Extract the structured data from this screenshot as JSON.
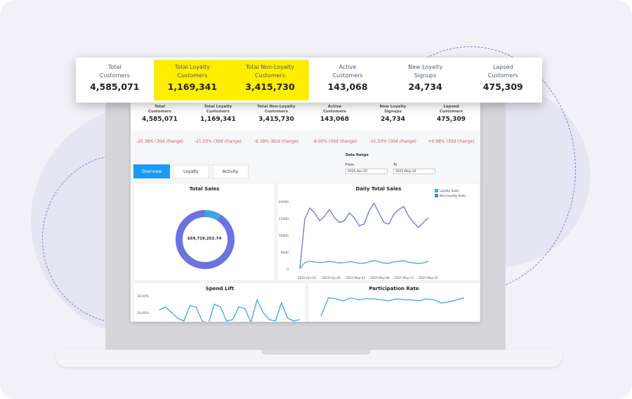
{
  "kpis": [
    {
      "label_line1": "Total",
      "label_line2": "Customers",
      "value": "4,585,071",
      "highlight": false
    },
    {
      "label_line1": "Total Loyalty",
      "label_line2": "Customers",
      "value": "1,169,341",
      "highlight": true
    },
    {
      "label_line1": "Total Non-Loyalty",
      "label_line2": "Customers",
      "value": "3,415,730",
      "highlight": true
    },
    {
      "label_line1": "Active",
      "label_line2": "Customers",
      "value": "143,068",
      "highlight": false
    },
    {
      "label_line1": "New Loyalty",
      "label_line2": "Signups",
      "value": "24,734",
      "highlight": false
    },
    {
      "label_line1": "Lapsed",
      "label_line2": "Customers",
      "value": "475,309",
      "highlight": false
    }
  ],
  "changes": [
    "-20.38% (30d change)",
    "-21.50% (30d change)",
    "-6.38% (82d change)",
    "-9.00% (30d change)",
    "-21.50% (30d change)",
    "+0.98% (30d change)"
  ],
  "date_range": {
    "title": "Date Range",
    "from_label": "From",
    "from_value": "2025-Apr-20",
    "to_label": "To",
    "to_value": "2025-May-19"
  },
  "tabs": [
    "Overview",
    "Loyalty",
    "Activity"
  ],
  "panels": {
    "total_sales": {
      "title": "Total Sales",
      "center_value": "$59,719,252.74"
    },
    "daily": {
      "title": "Daily Total Sales",
      "x_ticks": [
        "2025-Apr-24",
        "2025-Apr-28",
        "2025-May-03",
        "2025-May-08",
        "2025-May-13",
        "2025-May-16"
      ],
      "y_ticks": [
        "20000",
        "15000",
        "10000",
        "5000",
        "0"
      ]
    },
    "spend_lift": {
      "title": "Spend Lift",
      "y_ticks": [
        "30.00%",
        "20.00%"
      ]
    },
    "participation": {
      "title": "Participation Rate"
    }
  },
  "chart_data": [
    {
      "type": "pie",
      "title": "Total Sales",
      "labels": [
        "Loyalty Sales",
        "Non-Loyalty Sales"
      ],
      "values": [
        0.09,
        0.91
      ]
    },
    {
      "type": "line",
      "title": "Daily Total Sales",
      "x": [
        0,
        1,
        2,
        3,
        4,
        5,
        6,
        7,
        8,
        9,
        10,
        11,
        12,
        13,
        14,
        15,
        16,
        17,
        18,
        19,
        20,
        21,
        22,
        23,
        24,
        25,
        26
      ],
      "ylim": [
        0,
        21000
      ],
      "series": [
        {
          "name": "Non-Loyalty Sales",
          "values": [
            100,
            15500,
            19000,
            17500,
            15000,
            16500,
            18500,
            16000,
            14500,
            15000,
            17500,
            16000,
            13500,
            14000,
            18000,
            20500,
            17500,
            14500,
            14000,
            17000,
            18500,
            19500,
            16500,
            14500,
            13000,
            14500,
            16000
          ]
        },
        {
          "name": "Loyalty Sales",
          "values": [
            100,
            2000,
            2400,
            2200,
            2000,
            2100,
            2400,
            2100,
            1900,
            2000,
            2300,
            2100,
            1800,
            1800,
            2200,
            2700,
            2300,
            1900,
            1800,
            2200,
            2400,
            2600,
            2100,
            1900,
            1700,
            1900,
            2400
          ]
        }
      ]
    },
    {
      "type": "line",
      "title": "Spend Lift",
      "x": [
        0,
        1,
        2,
        3,
        4,
        5,
        6,
        7,
        8,
        9,
        10,
        11,
        12,
        13,
        14,
        15,
        16,
        17,
        18,
        19,
        20,
        21,
        22,
        23
      ],
      "series": [
        {
          "values": [
            22,
            24,
            20,
            16,
            14,
            25,
            24,
            14,
            12,
            26,
            24,
            14,
            15,
            24,
            23,
            13,
            29,
            20,
            15,
            14,
            27,
            16,
            14,
            15
          ]
        }
      ]
    },
    {
      "type": "line",
      "title": "Participation Rate",
      "x": [
        0,
        1,
        2,
        3,
        4,
        5,
        6,
        7,
        8,
        9,
        10,
        11,
        12,
        13,
        14,
        15,
        16,
        17,
        18,
        19
      ],
      "series": [
        {
          "values": [
            10,
            28,
            27,
            25,
            28,
            26,
            27,
            27,
            26,
            25,
            27,
            26,
            26,
            25,
            27,
            26,
            23,
            24,
            26,
            28
          ]
        }
      ]
    }
  ],
  "colors": {
    "highlight": "#ffee00",
    "accent": "#1a9bf0",
    "non_loyalty": "#6a73e0",
    "loyalty": "#3aa6ea",
    "negative": "#d9534f"
  }
}
